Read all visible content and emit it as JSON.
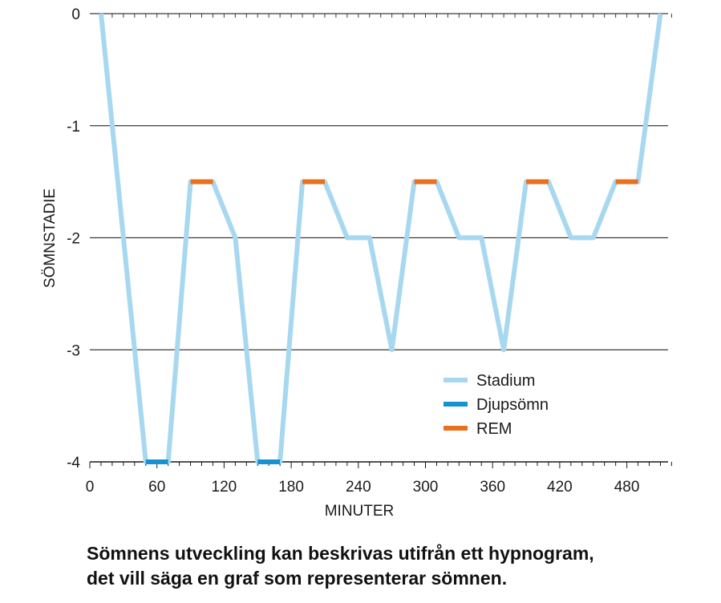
{
  "chart_data": {
    "type": "line",
    "title": "",
    "xlabel": "MINUTER",
    "ylabel": "SÖMNSTADIE",
    "xlim": [
      0,
      520
    ],
    "ylim": [
      -4,
      0
    ],
    "x_ticks": [
      0,
      60,
      120,
      180,
      240,
      300,
      360,
      420,
      480
    ],
    "y_ticks": [
      0,
      -1,
      -2,
      -3,
      -4
    ],
    "grid": "horizontal",
    "legend_position": "bottom-right",
    "series": [
      {
        "name": "Stadium",
        "color": "#a7d8f0",
        "points": [
          [
            10,
            0
          ],
          [
            50,
            -4
          ],
          [
            70,
            -4
          ],
          [
            90,
            -1.5
          ],
          [
            110,
            -1.5
          ],
          [
            130,
            -2
          ],
          [
            150,
            -4
          ],
          [
            170,
            -4
          ],
          [
            190,
            -1.5
          ],
          [
            210,
            -1.5
          ],
          [
            230,
            -2
          ],
          [
            250,
            -2
          ],
          [
            270,
            -3
          ],
          [
            290,
            -1.5
          ],
          [
            310,
            -1.5
          ],
          [
            330,
            -2
          ],
          [
            350,
            -2
          ],
          [
            370,
            -3
          ],
          [
            390,
            -1.5
          ],
          [
            410,
            -1.5
          ],
          [
            430,
            -2
          ],
          [
            450,
            -2
          ],
          [
            470,
            -1.5
          ],
          [
            490,
            -1.5
          ],
          [
            510,
            0
          ]
        ]
      },
      {
        "name": "Djupsömn",
        "color": "#1593d0",
        "segments": [
          [
            [
              50,
              -4
            ],
            [
              70,
              -4
            ]
          ],
          [
            [
              150,
              -4
            ],
            [
              170,
              -4
            ]
          ]
        ]
      },
      {
        "name": "REM",
        "color": "#e8701f",
        "segments": [
          [
            [
              90,
              -1.5
            ],
            [
              110,
              -1.5
            ]
          ],
          [
            [
              190,
              -1.5
            ],
            [
              210,
              -1.5
            ]
          ],
          [
            [
              290,
              -1.5
            ],
            [
              310,
              -1.5
            ]
          ],
          [
            [
              390,
              -1.5
            ],
            [
              410,
              -1.5
            ]
          ],
          [
            [
              470,
              -1.5
            ],
            [
              490,
              -1.5
            ]
          ]
        ]
      }
    ]
  },
  "caption": {
    "line1": "Sömnens utveckling kan beskrivas utifrån ett hypnogram,",
    "line2": "det vill säga en graf som representerar sömnen."
  }
}
